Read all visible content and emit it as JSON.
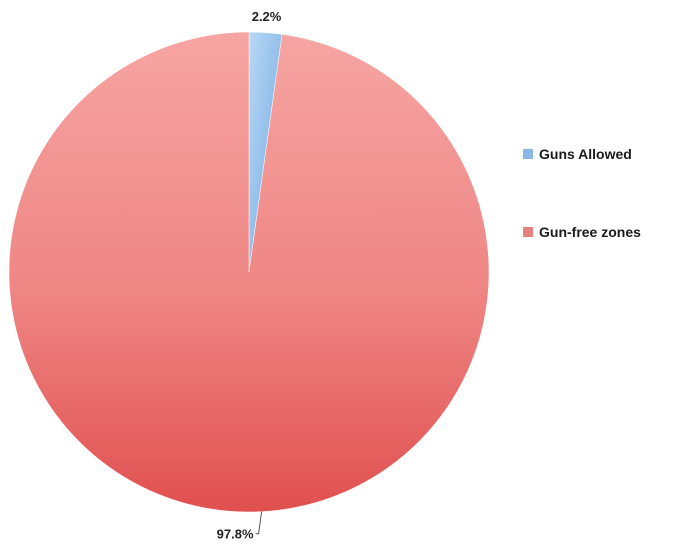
{
  "chart_data": {
    "type": "pie",
    "categories": [
      "Guns Allowed",
      "Gun-free zones"
    ],
    "values": [
      2.2,
      97.8
    ],
    "data_labels": [
      "2.2%",
      "97.8%"
    ],
    "colors": [
      "#7fb3e8",
      "#e66a6a"
    ],
    "legend_position": "right",
    "start_angle_deg": 0,
    "direction": "clockwise"
  },
  "legend": {
    "items": [
      {
        "label": "Guns Allowed",
        "color": "#8ab8e6"
      },
      {
        "label": "Gun-free zones",
        "color": "#e88080"
      }
    ]
  }
}
